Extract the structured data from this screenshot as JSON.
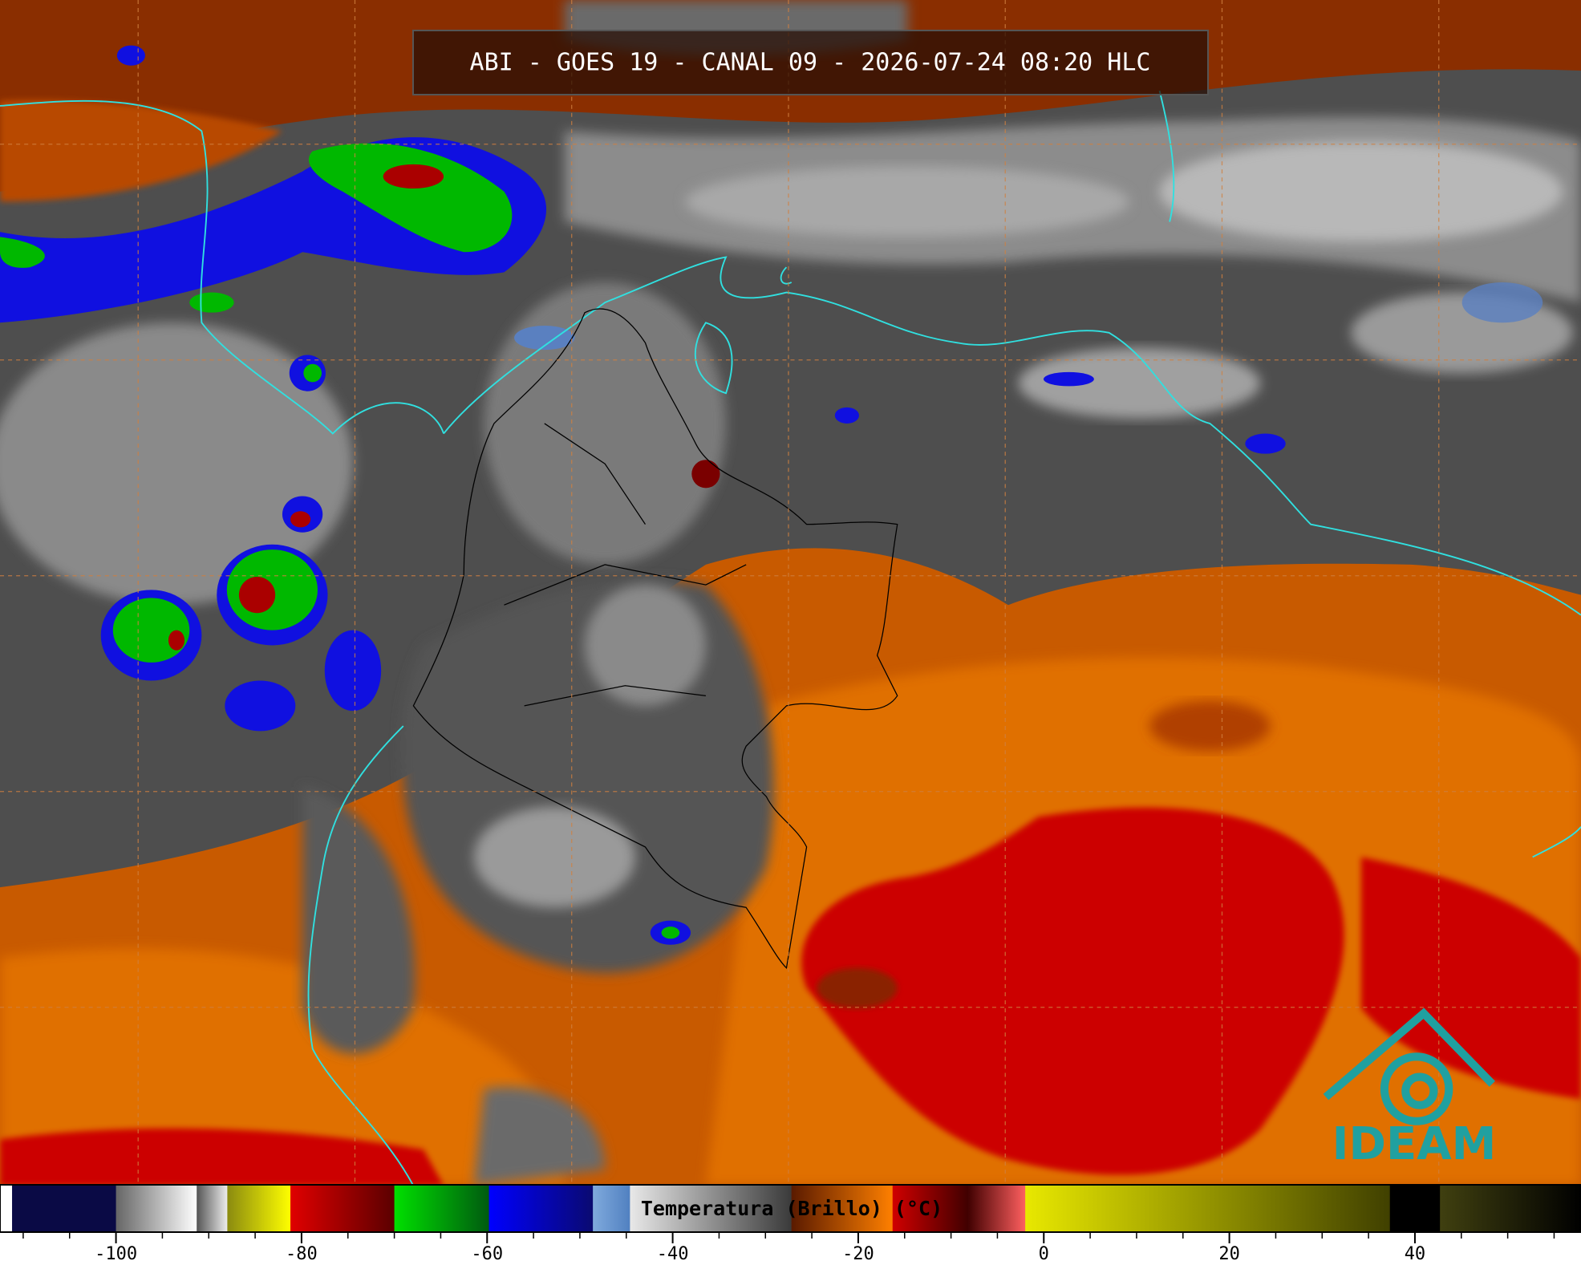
{
  "title": "ABI - GOES 19 - CANAL 09 - 2026-07-24 08:20 HLC",
  "logo": "IDEAM",
  "colorbar": {
    "label": "Temperatura (Brillo) (°C)",
    "xlim": [
      -112.5,
      57.9
    ],
    "xticks": [
      -100,
      -80,
      -60,
      -40,
      -20,
      0,
      20,
      40
    ],
    "minor_ticks": [
      -110,
      -105,
      -95,
      -90,
      -85,
      -75,
      -70,
      -65,
      -55,
      -50,
      -45,
      -35,
      -30,
      -25,
      -15,
      -10,
      -5,
      5,
      10,
      15,
      25,
      30,
      35,
      45,
      50,
      55
    ],
    "segments": [
      {
        "from": -112.5,
        "to": -111.2,
        "colors": [
          "#ffffff",
          "#ffffff"
        ]
      },
      {
        "from": -111.2,
        "to": -100,
        "colors": [
          "#0a0a45",
          "#0a0a45"
        ]
      },
      {
        "from": -100,
        "to": -91.3,
        "colors": [
          "#666666",
          "#ffffff"
        ]
      },
      {
        "from": -91.3,
        "to": -88,
        "colors": [
          "#555555",
          "#eeeeee"
        ]
      },
      {
        "from": -88,
        "to": -81.2,
        "colors": [
          "#8a8a10",
          "#ffff00"
        ]
      },
      {
        "from": -81.2,
        "to": -70,
        "colors": [
          "#e00000",
          "#5a0000"
        ]
      },
      {
        "from": -70,
        "to": -59.8,
        "colors": [
          "#00e000",
          "#005a10"
        ]
      },
      {
        "from": -59.8,
        "to": -48.6,
        "colors": [
          "#0000ff",
          "#0a0a70"
        ]
      },
      {
        "from": -48.6,
        "to": -44.6,
        "colors": [
          "#80aadd",
          "#5080c0"
        ]
      },
      {
        "from": -44.6,
        "to": -27.2,
        "colors": [
          "#e8e8e8",
          "#3a3a3a"
        ]
      },
      {
        "from": -27.2,
        "to": -16.3,
        "colors": [
          "#5a1a00",
          "#ff8000"
        ]
      },
      {
        "from": -16.3,
        "to": -8.2,
        "colors": [
          "#d00000",
          "#400000"
        ]
      },
      {
        "from": -8.2,
        "to": -2,
        "colors": [
          "#400000",
          "#ff6060"
        ]
      },
      {
        "from": -2,
        "to": 37.3,
        "colors": [
          "#e8e800",
          "#404000"
        ]
      },
      {
        "from": 37.3,
        "to": 42.7,
        "colors": [
          "#000000",
          "#000000"
        ]
      },
      {
        "from": 42.7,
        "to": 57.9,
        "colors": [
          "#404010",
          "#000000"
        ]
      }
    ]
  }
}
